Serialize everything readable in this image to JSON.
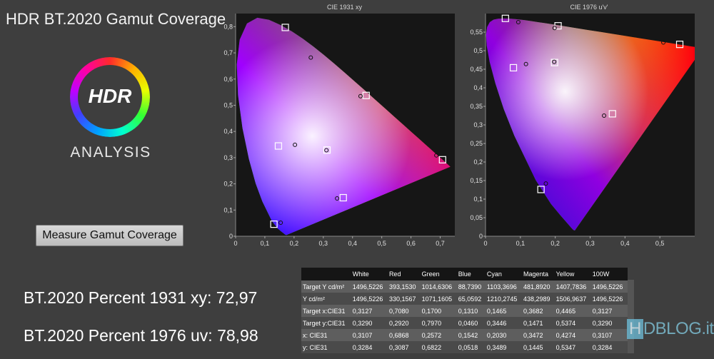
{
  "app": {
    "title": "HDR BT.2020  Gamut Coverage",
    "logo_text": "HDR",
    "logo_subtext": "ANALYSIS",
    "measure_button": "Measure Gamut Coverage",
    "result_1931": "BT.2020 Percent 1931 xy: 72,97",
    "result_1976": "BT.2020 Percent 1976 uv: 78,98",
    "watermark": "HDBLOG.it"
  },
  "chart_data": [
    {
      "type": "scatter",
      "title": "CIE 1931 xy",
      "xlim": [
        0,
        0.75
      ],
      "ylim": [
        0,
        0.85
      ],
      "x_ticks": [
        "0",
        "0,1",
        "0,2",
        "0,3",
        "0,4",
        "0,5",
        "0,6",
        "0,7"
      ],
      "y_ticks": [
        "0",
        "0,1",
        "0,2",
        "0,3",
        "0,4",
        "0,5",
        "0,6",
        "0,7",
        "0,8"
      ],
      "series": [
        {
          "marker": "square",
          "x": [
            0.708,
            0.17,
            0.131,
            0.1465,
            0.3682,
            0.4465,
            0.3127
          ],
          "y": [
            0.292,
            0.797,
            0.046,
            0.3446,
            0.1471,
            0.5374,
            0.329
          ]
        },
        {
          "marker": "circle",
          "x": [
            0.6868,
            0.2572,
            0.1542,
            0.203,
            0.3472,
            0.4274,
            0.3107
          ],
          "y": [
            0.3087,
            0.6822,
            0.0518,
            0.3489,
            0.1445,
            0.5347,
            0.3284
          ]
        }
      ]
    },
    {
      "type": "scatter",
      "title": "CIE 1976 u'v'",
      "xlim": [
        0,
        0.6
      ],
      "ylim": [
        0,
        0.6
      ],
      "x_ticks": [
        "0",
        "0,1",
        "0,2",
        "0,3",
        "0,4",
        "0,5"
      ],
      "y_ticks": [
        "0",
        "0,05",
        "0,1",
        "0,15",
        "0,2",
        "0,25",
        "0,3",
        "0,35",
        "0,4",
        "0,45",
        "0,5",
        "0,55"
      ],
      "series": [
        {
          "marker": "square",
          "x": [
            0.557,
            0.057,
            0.159,
            0.08,
            0.364,
            0.208,
            0.198
          ],
          "y": [
            0.517,
            0.587,
            0.126,
            0.454,
            0.33,
            0.567,
            0.468
          ]
        },
        {
          "marker": "circle",
          "x": [
            0.51,
            0.094,
            0.173,
            0.116,
            0.34,
            0.198,
            0.197
          ],
          "y": [
            0.522,
            0.577,
            0.142,
            0.464,
            0.325,
            0.561,
            0.47
          ]
        }
      ]
    }
  ],
  "table": {
    "headers": [
      "",
      "White",
      "Red",
      "Green",
      "Blue",
      "Cyan",
      "Magenta",
      "Yellow",
      "100W"
    ],
    "rows": [
      [
        "Target Y cd/m²",
        "1496,5226",
        "393,1530",
        "1014,6306",
        "88,7390",
        "1103,3696",
        "481,8920",
        "1407,7836",
        "1496,5226"
      ],
      [
        "Y cd/m²",
        "1496,5226",
        "330,1567",
        "1071,1605",
        "65,0592",
        "1210,2745",
        "438,2989",
        "1506,9637",
        "1496,5226"
      ],
      [
        "Target x:CIE31",
        "0,3127",
        "0,7080",
        "0,1700",
        "0,1310",
        "0,1465",
        "0,3682",
        "0,4465",
        "0,3127"
      ],
      [
        "Target y:CIE31",
        "0,3290",
        "0,2920",
        "0,7970",
        "0,0460",
        "0,3446",
        "0,1471",
        "0,5374",
        "0,3290"
      ],
      [
        "x: CIE31",
        "0,3107",
        "0,6868",
        "0,2572",
        "0,1542",
        "0,2030",
        "0,3472",
        "0,4274",
        "0,3107"
      ],
      [
        "y: CIE31",
        "0,3284",
        "0,3087",
        "0,6822",
        "0,0518",
        "0,3489",
        "0,1445",
        "0,5347",
        "0,3284"
      ]
    ]
  }
}
